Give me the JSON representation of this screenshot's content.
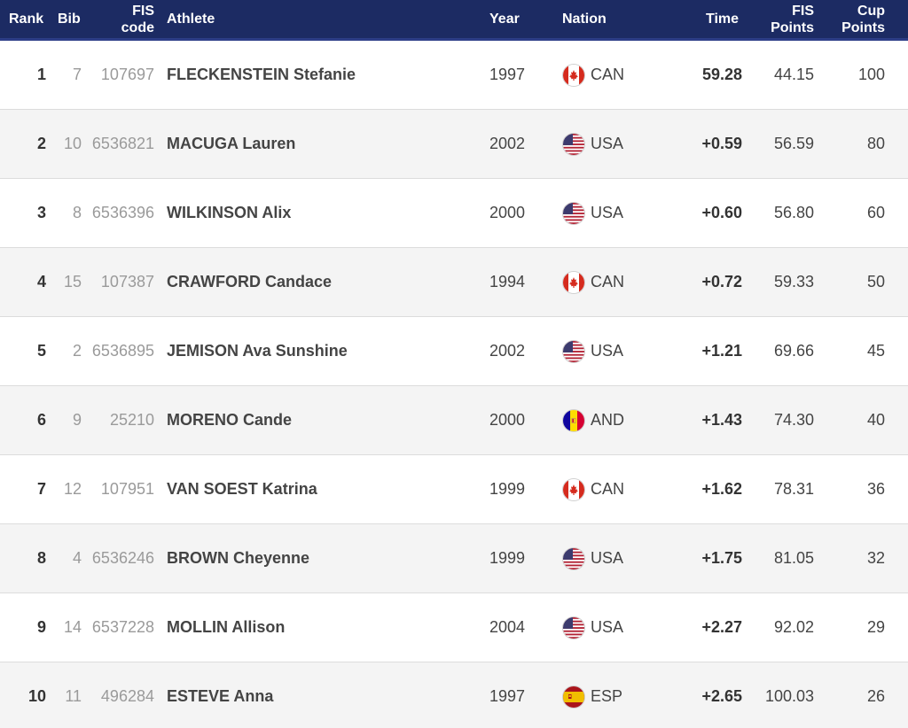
{
  "header": {
    "rank": "Rank",
    "bib": "Bib",
    "fis_code_1": "FIS",
    "fis_code_2": "code",
    "athlete": "Athlete",
    "year": "Year",
    "nation": "Nation",
    "time": "Time",
    "fis_points_1": "FIS",
    "fis_points_2": "Points",
    "cup_points_1": "Cup",
    "cup_points_2": "Points"
  },
  "rows": [
    {
      "rank": "1",
      "bib": "7",
      "fis_code": "107697",
      "athlete": "FLECKENSTEIN Stefanie",
      "year": "1997",
      "flag_icon": "canada-flag-icon",
      "nation": "CAN",
      "time": "59.28",
      "fis_points": "44.15",
      "cup_points": "100"
    },
    {
      "rank": "2",
      "bib": "10",
      "fis_code": "6536821",
      "athlete": "MACUGA Lauren",
      "year": "2002",
      "flag_icon": "usa-flag-icon",
      "nation": "USA",
      "time": "+0.59",
      "fis_points": "56.59",
      "cup_points": "80"
    },
    {
      "rank": "3",
      "bib": "8",
      "fis_code": "6536396",
      "athlete": "WILKINSON Alix",
      "year": "2000",
      "flag_icon": "usa-flag-icon",
      "nation": "USA",
      "time": "+0.60",
      "fis_points": "56.80",
      "cup_points": "60"
    },
    {
      "rank": "4",
      "bib": "15",
      "fis_code": "107387",
      "athlete": "CRAWFORD Candace",
      "year": "1994",
      "flag_icon": "canada-flag-icon",
      "nation": "CAN",
      "time": "+0.72",
      "fis_points": "59.33",
      "cup_points": "50"
    },
    {
      "rank": "5",
      "bib": "2",
      "fis_code": "6536895",
      "athlete": "JEMISON Ava Sunshine",
      "year": "2002",
      "flag_icon": "usa-flag-icon",
      "nation": "USA",
      "time": "+1.21",
      "fis_points": "69.66",
      "cup_points": "45"
    },
    {
      "rank": "6",
      "bib": "9",
      "fis_code": "25210",
      "athlete": "MORENO Cande",
      "year": "2000",
      "flag_icon": "andorra-flag-icon",
      "nation": "AND",
      "time": "+1.43",
      "fis_points": "74.30",
      "cup_points": "40"
    },
    {
      "rank": "7",
      "bib": "12",
      "fis_code": "107951",
      "athlete": "VAN SOEST Katrina",
      "year": "1999",
      "flag_icon": "canada-flag-icon",
      "nation": "CAN",
      "time": "+1.62",
      "fis_points": "78.31",
      "cup_points": "36"
    },
    {
      "rank": "8",
      "bib": "4",
      "fis_code": "6536246",
      "athlete": "BROWN Cheyenne",
      "year": "1999",
      "flag_icon": "usa-flag-icon",
      "nation": "USA",
      "time": "+1.75",
      "fis_points": "81.05",
      "cup_points": "32"
    },
    {
      "rank": "9",
      "bib": "14",
      "fis_code": "6537228",
      "athlete": "MOLLIN Allison",
      "year": "2004",
      "flag_icon": "usa-flag-icon",
      "nation": "USA",
      "time": "+2.27",
      "fis_points": "92.02",
      "cup_points": "29"
    },
    {
      "rank": "10",
      "bib": "11",
      "fis_code": "496284",
      "athlete": "ESTEVE Anna",
      "year": "1997",
      "flag_icon": "spain-flag-icon",
      "nation": "ESP",
      "time": "+2.65",
      "fis_points": "100.03",
      "cup_points": "26"
    }
  ],
  "colors": {
    "header_bg": "#1c2b63",
    "header_border": "#2c3d86",
    "row_alt_bg": "#f4f4f4"
  }
}
